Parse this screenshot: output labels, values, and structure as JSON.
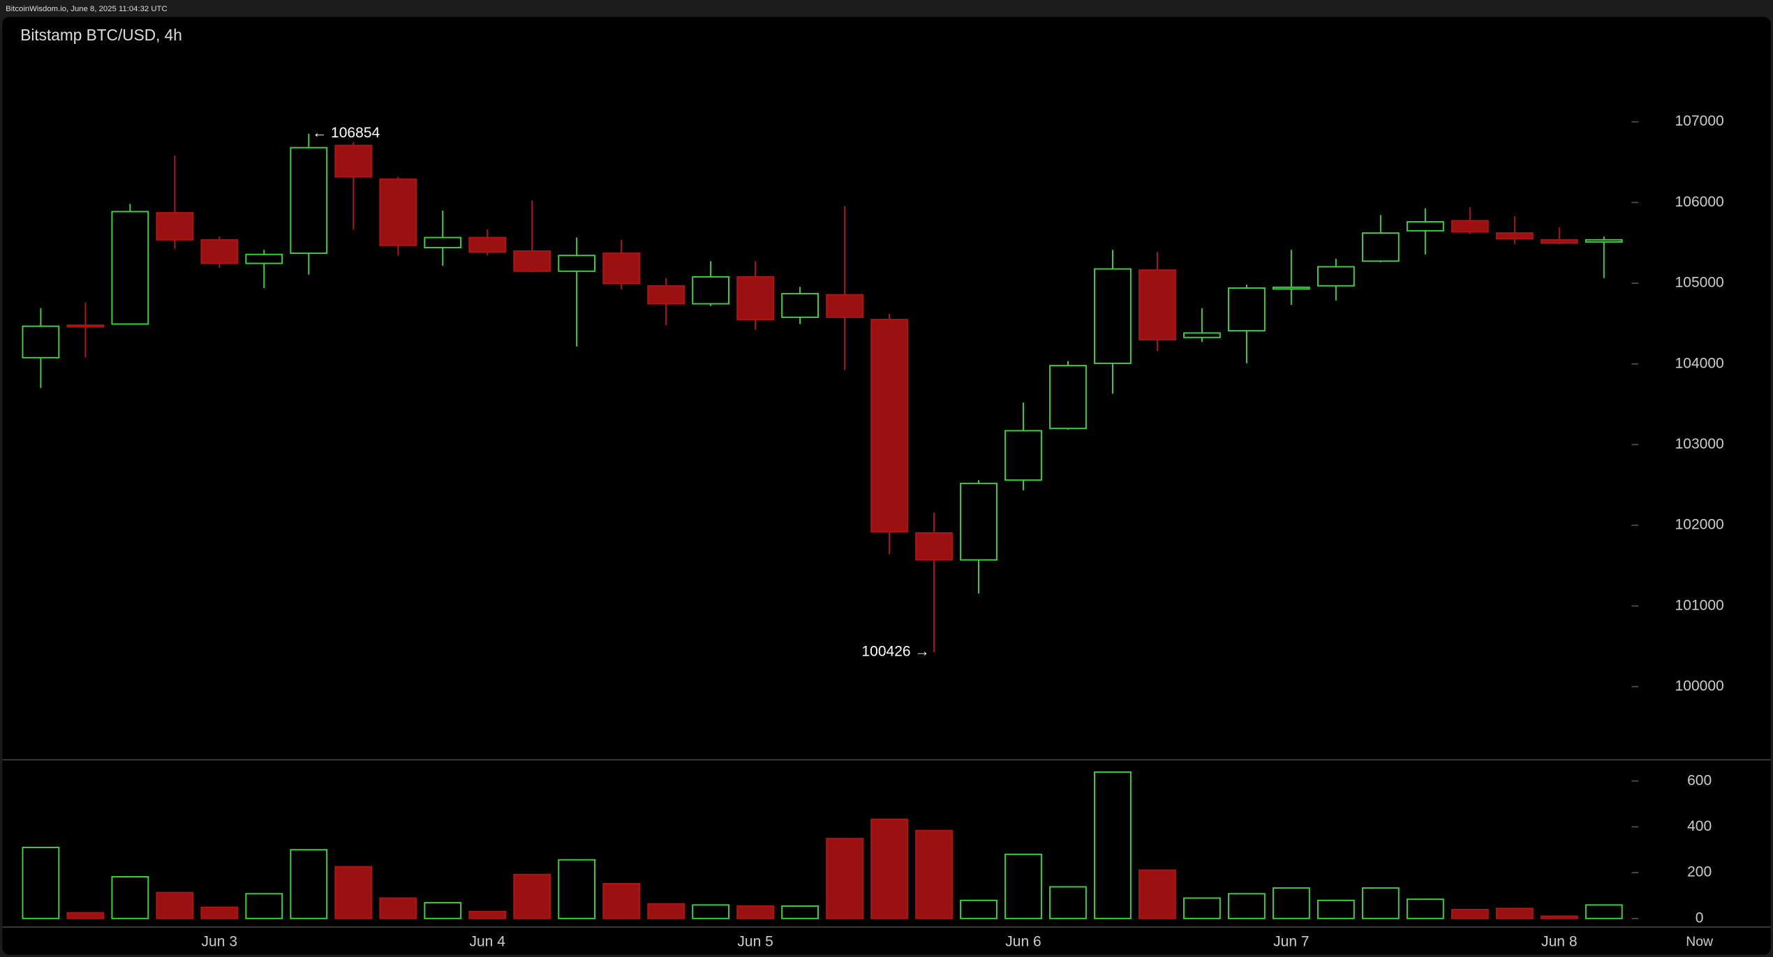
{
  "header": "BitcoinWisdom.io, June 8, 2025 11:04:32 UTC",
  "chart_data": {
    "type": "candlestick",
    "title": "Bitstamp BTC/USD, 4h",
    "categories": [
      null,
      null,
      null,
      null,
      "Jun 3",
      null,
      null,
      null,
      null,
      null,
      "Jun 4",
      null,
      null,
      null,
      null,
      null,
      "Jun 5",
      null,
      null,
      null,
      null,
      null,
      "Jun 6",
      null,
      null,
      null,
      null,
      null,
      "Jun 7",
      null,
      null,
      null,
      null,
      null,
      "Jun 8",
      null
    ],
    "now_label": "Now",
    "open": [
      104077,
      104480,
      104494,
      105873,
      105538,
      105246,
      105371,
      106708,
      106290,
      105441,
      105566,
      105399,
      105149,
      105371,
      104968,
      104745,
      105079,
      104578,
      104857,
      104550,
      101905,
      101571,
      102560,
      103200,
      104007,
      105163,
      104328,
      104411,
      104940,
      104968,
      105274,
      105650,
      105775,
      105622,
      105538,
      105511
    ],
    "high": [
      104689,
      104759,
      105984,
      106582,
      105580,
      105413,
      106854,
      106749,
      106318,
      105900,
      105664,
      106026,
      105566,
      105538,
      105065,
      105274,
      105274,
      104954,
      105956,
      104620,
      102156,
      102560,
      103520,
      104035,
      105413,
      105385,
      104689,
      104982,
      105413,
      105302,
      105845,
      105928,
      105942,
      105831,
      105692,
      105580
    ],
    "low": [
      103701,
      104077,
      104494,
      105427,
      105190,
      104940,
      105107,
      105664,
      105344,
      105218,
      105344,
      105135,
      104216,
      104926,
      104480,
      104717,
      104425,
      104494,
      103924,
      101641,
      100426,
      101154,
      102434,
      103186,
      103631,
      104160,
      104272,
      104007,
      104731,
      104787,
      105260,
      105357,
      105608,
      105483,
      105483,
      105065
    ],
    "close": [
      104467,
      104470,
      105887,
      105538,
      105246,
      105357,
      106680,
      106318,
      105469,
      105566,
      105385,
      105149,
      105344,
      104996,
      104745,
      105079,
      104550,
      104870,
      104578,
      101919,
      101571,
      102518,
      103172,
      103979,
      105177,
      104300,
      104383,
      104940,
      104950,
      105204,
      105622,
      105761,
      105636,
      105552,
      105497,
      105538
    ],
    "volume": [
      310,
      25,
      182,
      113,
      49,
      108,
      300,
      226,
      89,
      69,
      30,
      192,
      256,
      152,
      64,
      59,
      54,
      54,
      349,
      433,
      384,
      79,
      280,
      138,
      639,
      211,
      89,
      108,
      133,
      79,
      133,
      84,
      39,
      44,
      10,
      59
    ],
    "up_color": "#3dd13d",
    "down_color": "#9b1010",
    "ylim": [
      99100,
      108300
    ],
    "yticks": [
      100000,
      101000,
      102000,
      103000,
      104000,
      105000,
      106000,
      107000
    ],
    "volume_ylim": [
      -35,
      690
    ],
    "volume_ticks": [
      0,
      200,
      400,
      600
    ],
    "annotations": [
      {
        "value": 106854,
        "label": "← 106854",
        "index": 6
      },
      {
        "value": 100426,
        "label": "100426 →",
        "index": 20
      }
    ]
  }
}
